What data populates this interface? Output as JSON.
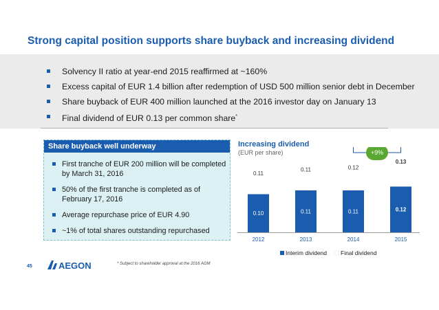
{
  "title": "Strong capital position supports share buyback and increasing dividend",
  "bullets": [
    "Solvency II ratio at year-end 2015 reaffirmed at ~160%",
    "Excess capital of EUR 1.4 billion after redemption of USD 500 million senior debt in December",
    "Share buyback of EUR 400 million launched at the 2016 investor day on January 13",
    "Final dividend of EUR 0.13 per common share"
  ],
  "bullet_footnote_mark": "*",
  "buyback": {
    "header": "Share buyback well underway",
    "items": [
      "First tranche of EUR 200 million will be completed by March 31, 2016",
      "50% of the first tranche is completed as of February 17, 2016",
      "Average repurchase price of EUR 4.90",
      "~1% of total shares outstanding repurchased"
    ]
  },
  "chart_data": {
    "type": "bar",
    "stacked": true,
    "title": "Increasing dividend",
    "subtitle": "(EUR per share)",
    "categories": [
      "2012",
      "2013",
      "2014",
      "2015"
    ],
    "series": [
      {
        "name": "Interim dividend",
        "values": [
          0.1,
          0.11,
          0.11,
          0.12
        ],
        "labels": [
          "0.10",
          "0.11",
          "0.11",
          "0.12"
        ],
        "color": "#1a5cad"
      },
      {
        "name": "Final dividend",
        "values": [
          0.11,
          0.11,
          0.12,
          0.13
        ],
        "labels": [
          "0.11",
          "0.11",
          "0.12",
          "0.13"
        ],
        "color": "#ffffff"
      }
    ],
    "annotation": "+9%",
    "annotation_color": "#5aa832",
    "ylim": [
      0,
      0.27
    ],
    "legend": "bottom"
  },
  "footnote": "* Subject to shareholder approval at the 2016 AGM",
  "page_number": "45",
  "logo_text": "AEGON",
  "colors": {
    "accent": "#1a5cad",
    "positive": "#5aa832",
    "panel": "#ebebeb",
    "box": "#dcf1f3"
  }
}
